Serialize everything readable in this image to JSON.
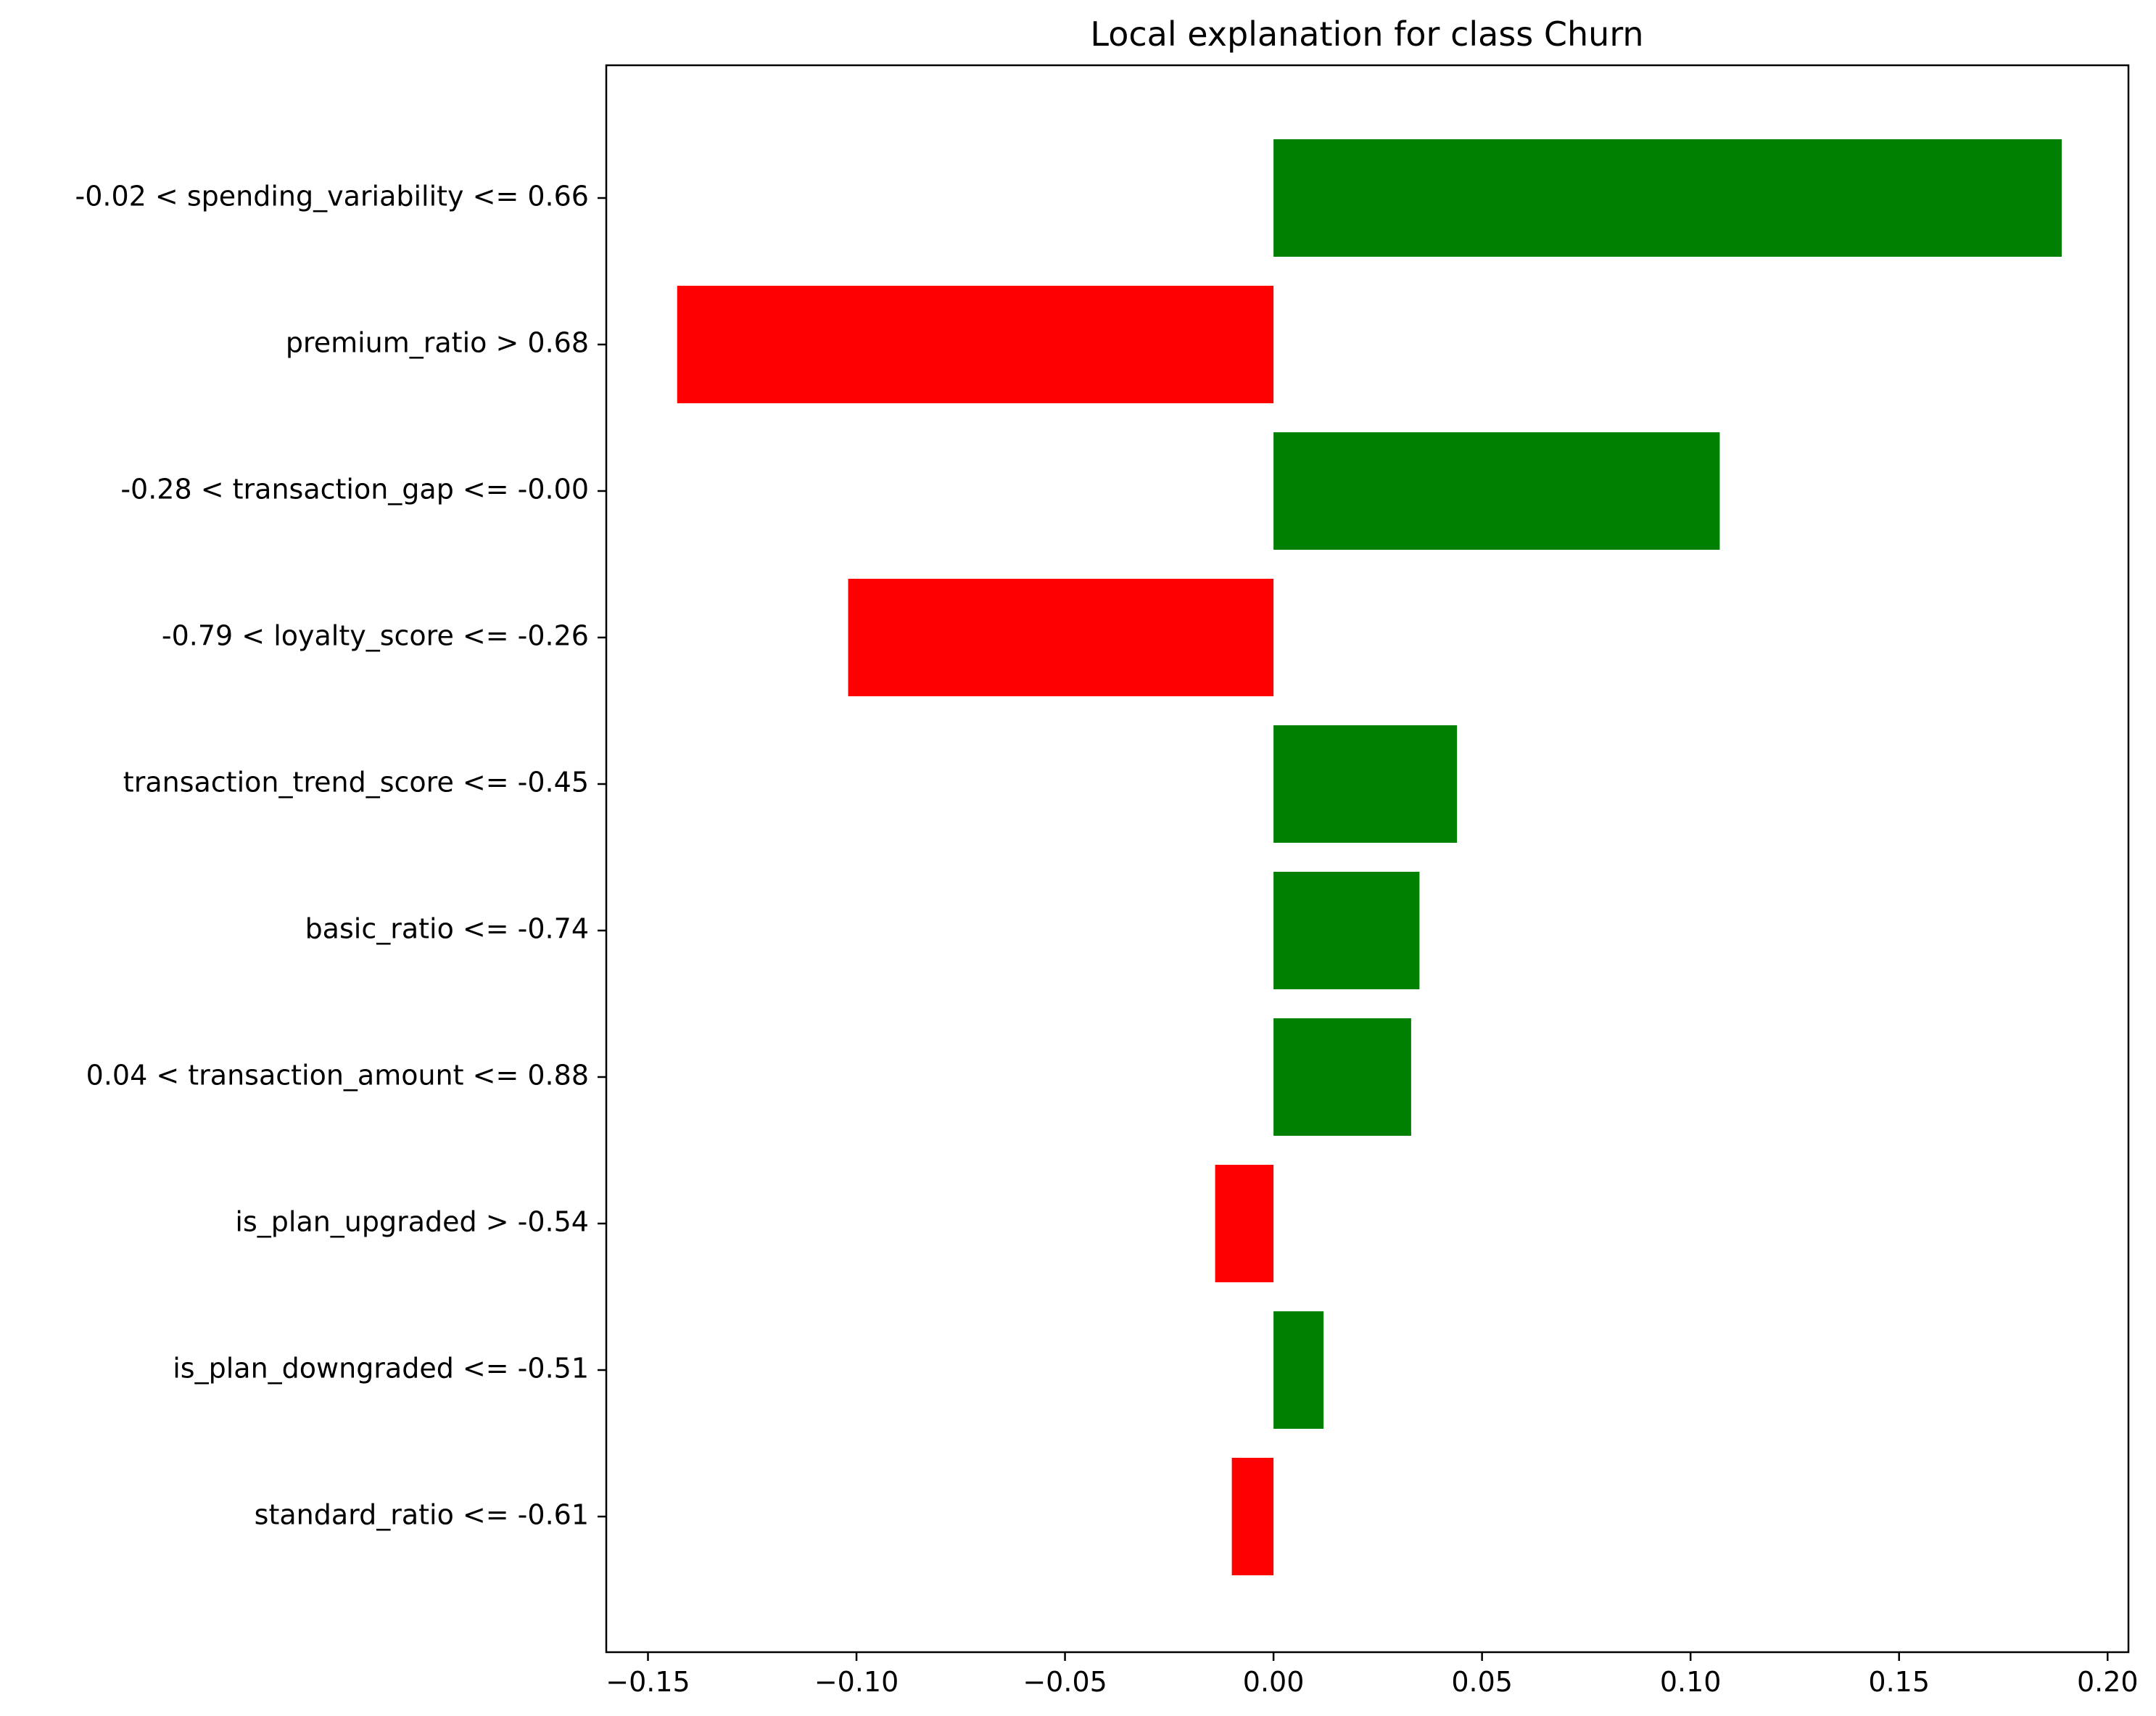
{
  "chart_data": {
    "type": "bar",
    "orientation": "horizontal",
    "title": "Local explanation for class Churn",
    "xlabel": "",
    "ylabel": "",
    "xlim": [
      -0.16,
      0.205
    ],
    "xticks": [
      -0.15,
      -0.1,
      -0.05,
      0.0,
      0.05,
      0.1,
      0.15,
      0.2
    ],
    "xtick_labels": [
      "−0.15",
      "−0.10",
      "−0.05",
      "0.00",
      "0.05",
      "0.10",
      "0.15",
      "0.20"
    ],
    "grid": false,
    "legend": "none",
    "colors": {
      "positive": "#008000",
      "negative": "#ff0000"
    },
    "categories": [
      "-0.02 < spending_variability <= 0.66",
      "premium_ratio > 0.68",
      "-0.28 < transaction_gap <= -0.00",
      "-0.79 < loyalty_score <= -0.26",
      "transaction_trend_score <= -0.45",
      "basic_ratio <= -0.74",
      "0.04 < transaction_amount <= 0.88",
      "is_plan_upgraded > -0.54",
      "is_plan_downgraded <= -0.51",
      "standard_ratio <= -0.61"
    ],
    "values": [
      0.189,
      -0.143,
      0.107,
      -0.102,
      0.044,
      0.035,
      0.033,
      -0.014,
      0.012,
      -0.01
    ]
  }
}
